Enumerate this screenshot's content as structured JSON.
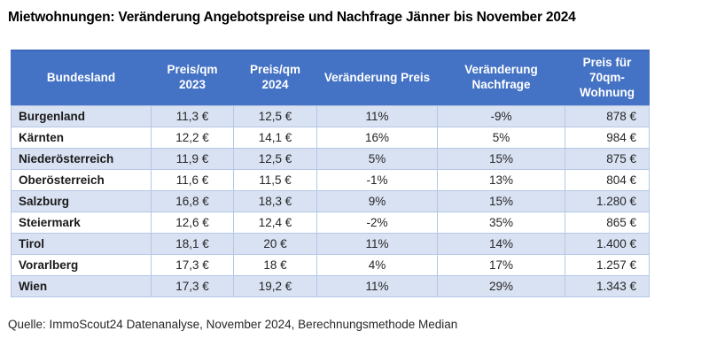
{
  "title": "Mietwohnungen: Veränderung Angebotspreise und Nachfrage Jänner bis November 2024",
  "source": "Quelle: ImmoScout24 Datenanalyse, November 2024, Berechnungsmethode Median",
  "colors": {
    "header_bg": "#4472C4",
    "header_text": "#FFFFFF",
    "band_row_bg": "#D9E2F3",
    "plain_row_bg": "#FFFFFF",
    "cell_border": "#B4C7E7",
    "body_text": "#262626"
  },
  "chart_data": {
    "type": "table",
    "title": "Mietwohnungen: Veränderung Angebotspreise und Nachfrage Jänner bis November 2024",
    "columns": [
      "Bundesland",
      "Preis/qm 2023",
      "Preis/qm 2024",
      "Veränderung Preis",
      "Veränderung Nachfrage",
      "Preis für 70qm-Wohnung"
    ],
    "rows": [
      [
        "Burgenland",
        "11,3 €",
        "12,5 €",
        "11%",
        "-9%",
        "878 €"
      ],
      [
        "Kärnten",
        "12,2 €",
        "14,1 €",
        "16%",
        "5%",
        "984 €"
      ],
      [
        "Niederösterreich",
        "11,9 €",
        "12,5 €",
        "5%",
        "15%",
        "875 €"
      ],
      [
        "Oberösterreich",
        "11,6 €",
        "11,5 €",
        "-1%",
        "13%",
        "804 €"
      ],
      [
        "Salzburg",
        "16,8 €",
        "18,3 €",
        "9%",
        "15%",
        "1.280 €"
      ],
      [
        "Steiermark",
        "12,6 €",
        "12,4 €",
        "-2%",
        "35%",
        "865 €"
      ],
      [
        "Tirol",
        "18,1 €",
        "20 €",
        "11%",
        "14%",
        "1.400 €"
      ],
      [
        "Vorarlberg",
        "17,3 €",
        "18 €",
        "4%",
        "17%",
        "1.257 €"
      ],
      [
        "Wien",
        "17,3 €",
        "19,2 €",
        "11%",
        "29%",
        "1.343 €"
      ]
    ],
    "source": "Quelle: ImmoScout24 Datenanalyse, November 2024, Berechnungsmethode Median"
  }
}
